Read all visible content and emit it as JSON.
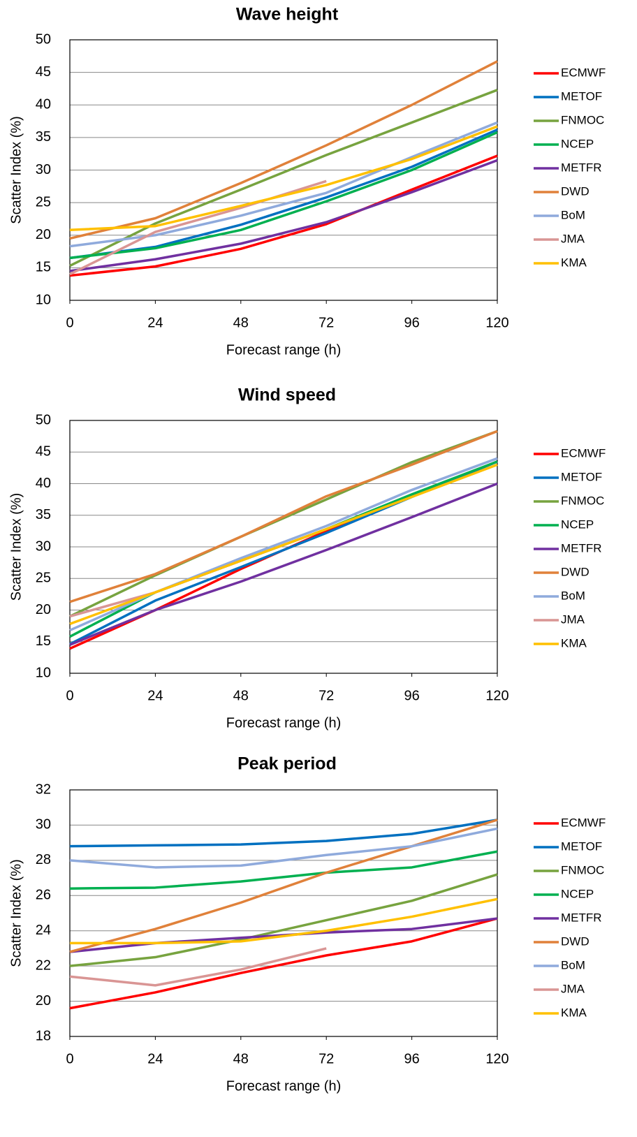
{
  "chart_data": [
    {
      "type": "line",
      "title": "Wave height",
      "x_label": "Forecast range (h)",
      "y_label": "Scatter Index (%)",
      "x": [
        0,
        24,
        48,
        72,
        96,
        120
      ],
      "xlim": [
        0,
        120
      ],
      "xticks": [
        0,
        24,
        48,
        72,
        96,
        120
      ],
      "ylim": [
        10,
        50
      ],
      "yticks": [
        10,
        15,
        20,
        25,
        30,
        35,
        40,
        45,
        50
      ],
      "grid": true,
      "legend": "right",
      "series": [
        {
          "name": "ECMWF",
          "color": "#ff0000",
          "values": [
            13.8,
            15.2,
            17.9,
            21.7,
            27.0,
            32.2
          ]
        },
        {
          "name": "METOF",
          "color": "#0070c0",
          "values": [
            16.5,
            18.2,
            21.6,
            25.8,
            30.5,
            36.2
          ]
        },
        {
          "name": "FNMOC",
          "color": "#77a33f",
          "values": [
            15.3,
            21.8,
            27.0,
            32.3,
            37.3,
            42.3
          ]
        },
        {
          "name": "NCEP",
          "color": "#00b050",
          "values": [
            16.5,
            18.0,
            20.8,
            25.2,
            30.0,
            35.8
          ]
        },
        {
          "name": "METFR",
          "color": "#7030a0",
          "values": [
            14.5,
            16.3,
            18.7,
            22.0,
            26.6,
            31.5
          ]
        },
        {
          "name": "DWD",
          "color": "#e0813a",
          "values": [
            19.5,
            22.6,
            28.0,
            33.8,
            40.0,
            46.7
          ]
        },
        {
          "name": "BoM",
          "color": "#8faadc",
          "values": [
            18.3,
            20.0,
            23.0,
            26.5,
            32.0,
            37.3
          ]
        },
        {
          "name": "JMA",
          "color": "#d99594",
          "values": [
            14.0,
            20.5,
            24.2,
            28.3,
            null,
            null
          ]
        },
        {
          "name": "KMA",
          "color": "#ffc000",
          "values": [
            20.8,
            21.4,
            24.5,
            27.7,
            31.7,
            36.7
          ]
        }
      ]
    },
    {
      "type": "line",
      "title": "Wind speed",
      "x_label": "Forecast range (h)",
      "y_label": "Scatter Index (%)",
      "x": [
        0,
        24,
        48,
        72,
        96,
        120
      ],
      "xlim": [
        0,
        120
      ],
      "xticks": [
        0,
        24,
        48,
        72,
        96,
        120
      ],
      "ylim": [
        10,
        50
      ],
      "yticks": [
        10,
        15,
        20,
        25,
        30,
        35,
        40,
        45,
        50
      ],
      "grid": true,
      "legend": "right",
      "series": [
        {
          "name": "ECMWF",
          "color": "#ff0000",
          "values": [
            13.9,
            20.0,
            26.5,
            32.5,
            38.0,
            43.5
          ]
        },
        {
          "name": "METOF",
          "color": "#0070c0",
          "values": [
            14.6,
            21.5,
            26.8,
            32.2,
            37.9,
            43.5
          ]
        },
        {
          "name": "FNMOC",
          "color": "#77a33f",
          "values": [
            19.0,
            25.5,
            31.6,
            37.5,
            43.4,
            48.3
          ]
        },
        {
          "name": "NCEP",
          "color": "#00b050",
          "values": [
            15.8,
            22.8,
            27.8,
            32.8,
            38.3,
            43.5
          ]
        },
        {
          "name": "METFR",
          "color": "#7030a0",
          "values": [
            14.5,
            20.0,
            24.5,
            29.5,
            34.7,
            40.0
          ]
        },
        {
          "name": "DWD",
          "color": "#e0813a",
          "values": [
            21.3,
            25.7,
            31.6,
            38.0,
            43.0,
            48.3
          ]
        },
        {
          "name": "BoM",
          "color": "#8faadc",
          "values": [
            16.8,
            22.8,
            28.2,
            33.3,
            39.0,
            44.0
          ]
        },
        {
          "name": "JMA",
          "color": "#d99594",
          "values": [
            19.0,
            22.8,
            27.8,
            32.8,
            null,
            null
          ]
        },
        {
          "name": "KMA",
          "color": "#ffc000",
          "values": [
            17.8,
            22.8,
            27.8,
            32.8,
            37.9,
            43.0
          ]
        }
      ]
    },
    {
      "type": "line",
      "title": "Peak period",
      "x_label": "Forecast range (h)",
      "y_label": "Scatter Index (%)",
      "x": [
        0,
        24,
        48,
        72,
        96,
        120
      ],
      "xlim": [
        0,
        120
      ],
      "xticks": [
        0,
        24,
        48,
        72,
        96,
        120
      ],
      "ylim": [
        18,
        32
      ],
      "yticks": [
        18,
        20,
        22,
        24,
        26,
        28,
        30,
        32
      ],
      "grid": true,
      "legend": "right",
      "series": [
        {
          "name": "ECMWF",
          "color": "#ff0000",
          "values": [
            19.6,
            20.5,
            21.6,
            22.6,
            23.4,
            24.7
          ]
        },
        {
          "name": "METOF",
          "color": "#0070c0",
          "values": [
            28.8,
            28.85,
            28.9,
            29.1,
            29.5,
            30.3
          ]
        },
        {
          "name": "FNMOC",
          "color": "#77a33f",
          "values": [
            22.0,
            22.5,
            23.5,
            24.6,
            25.7,
            27.2
          ]
        },
        {
          "name": "NCEP",
          "color": "#00b050",
          "values": [
            26.4,
            26.45,
            26.8,
            27.3,
            27.6,
            28.5
          ]
        },
        {
          "name": "METFR",
          "color": "#7030a0",
          "values": [
            22.8,
            23.3,
            23.6,
            23.9,
            24.1,
            24.7
          ]
        },
        {
          "name": "DWD",
          "color": "#e0813a",
          "values": [
            22.8,
            24.1,
            25.6,
            27.3,
            28.8,
            30.3
          ]
        },
        {
          "name": "BoM",
          "color": "#8faadc",
          "values": [
            28.0,
            27.6,
            27.7,
            28.3,
            28.8,
            29.8
          ]
        },
        {
          "name": "JMA",
          "color": "#d99594",
          "values": [
            21.4,
            20.9,
            21.8,
            23.0,
            null,
            null
          ]
        },
        {
          "name": "KMA",
          "color": "#ffc000",
          "values": [
            23.3,
            23.3,
            23.4,
            24.0,
            24.8,
            25.8
          ]
        }
      ]
    }
  ]
}
